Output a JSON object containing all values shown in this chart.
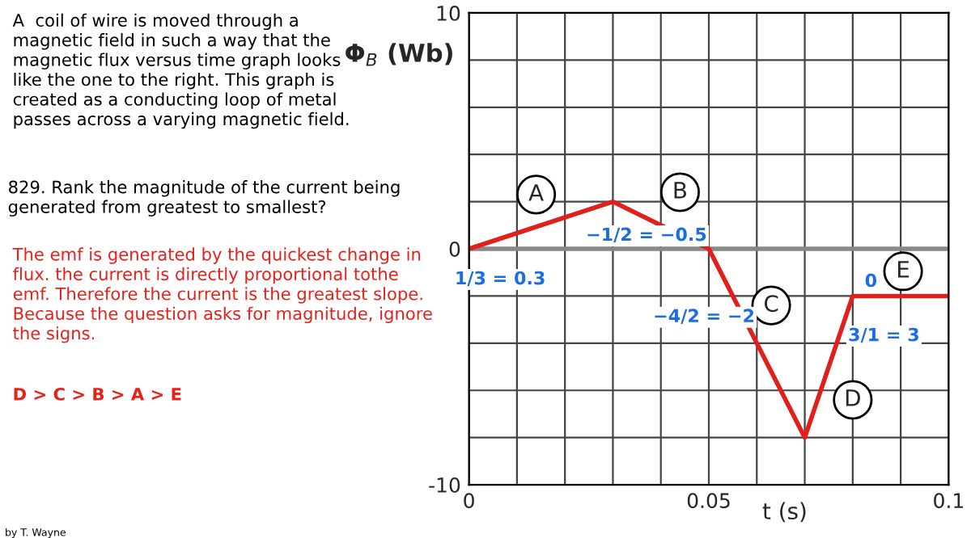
{
  "chart_data": {
    "type": "line",
    "x": [
      0,
      0.03,
      0.05,
      0.07,
      0.08,
      0.1
    ],
    "series": [
      {
        "color": "#e0201b",
        "values": [
          0,
          2,
          0,
          -8,
          -2,
          -2
        ]
      }
    ],
    "xlim": [
      0,
      0.1
    ],
    "ylim": [
      -10,
      10
    ],
    "xticks": [
      0,
      {
        "value": 0.01,
        "label": null
      },
      {
        "value": 0.02,
        "label": null
      },
      {
        "value": 0.03,
        "label": null
      },
      {
        "value": 0.04,
        "label": null
      },
      0.05,
      {
        "value": 0.06,
        "label": null
      },
      {
        "value": 0.07,
        "label": null
      },
      {
        "value": 0.08,
        "label": null
      },
      {
        "value": 0.09,
        "label": null
      },
      0.1
    ],
    "yticks": [
      -10,
      {
        "value": -8,
        "label": null
      },
      {
        "value": -6,
        "label": null
      },
      {
        "value": -4,
        "label": null
      },
      {
        "value": -2,
        "label": null
      },
      0,
      {
        "value": 2,
        "label": null
      },
      {
        "value": 4,
        "label": null
      },
      {
        "value": 6,
        "label": null
      },
      {
        "value": 8,
        "label": null
      },
      10
    ],
    "xlabel": "t (s)",
    "ylabel": "Φ$_{B}$ (Wb)",
    "grid": true,
    "marker": "none",
    "line_style": "solid",
    "annotations": [
      "A  coil of wire is moved through a\nmagnetic field in such a way that the\nmagnetic flux versus time graph looks\nlike the one to the right. This graph is\ncreated as a conducting loop of metal\npasses across a varying magnetic field.",
      "829. Rank the magnitude of the current being\ngenerated from greatest to smallest?",
      "The emf is generated by the quickest change in\nflux. the current is directly proportional tothe\nemf. Therefore the current is the greatest slope.\nBecause the question asks for magnitude, ignore\nthe signs.",
      "D > C > B > A > E",
      "by T. Wayne",
      {
        "text": "A",
        "x": 0.014,
        "y": 2.3
      },
      {
        "text": "B",
        "x": 0.044,
        "y": 2.4
      },
      {
        "text": "C",
        "x": 0.063,
        "y": -2.4
      },
      {
        "text": "D",
        "x": 0.08,
        "y": -6.4
      },
      {
        "text": "E",
        "x": 0.0905,
        "y": -0.95
      },
      "1/3 = 0.3",
      "−1/2 = −0.5",
      "−4/2 = −2",
      "3/1 = 3",
      "0"
    ]
  }
}
